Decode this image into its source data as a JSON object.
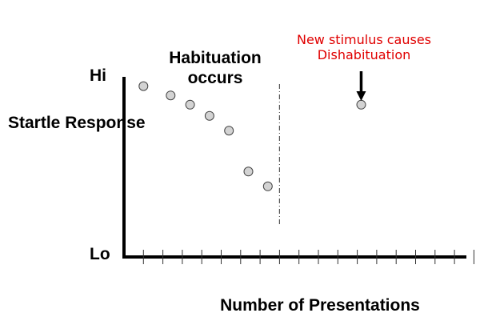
{
  "chart_data": {
    "type": "scatter",
    "title": "Habituation occurs",
    "xlabel": "Number of Presentations",
    "ylabel": "Startle Response",
    "ytick_labels": {
      "max": "Hi",
      "min": "Lo"
    },
    "xlim": [
      0,
      18
    ],
    "ylim": [
      0,
      10
    ],
    "grid": false,
    "x_ticks": [
      1,
      2,
      3,
      4,
      5,
      6,
      7,
      8,
      9,
      10,
      11,
      12,
      13,
      14,
      15,
      16,
      17,
      18
    ],
    "series": [
      {
        "x": [
          1,
          2.4,
          3.4,
          4.4,
          5.4,
          6.4,
          7.4,
          12.2
        ],
        "y": [
          9.2,
          8.7,
          8.2,
          7.6,
          6.8,
          4.6,
          3.8,
          8.2
        ]
      }
    ],
    "divider_x": 8,
    "annotation": {
      "text": "New stimulus causes Dishabituation",
      "x": 12.2,
      "color": "#e00000"
    },
    "colors": {
      "point_fill": "#d3d3d3",
      "point_stroke": "#444444",
      "axis": "#000000",
      "divider": "#555555"
    }
  }
}
